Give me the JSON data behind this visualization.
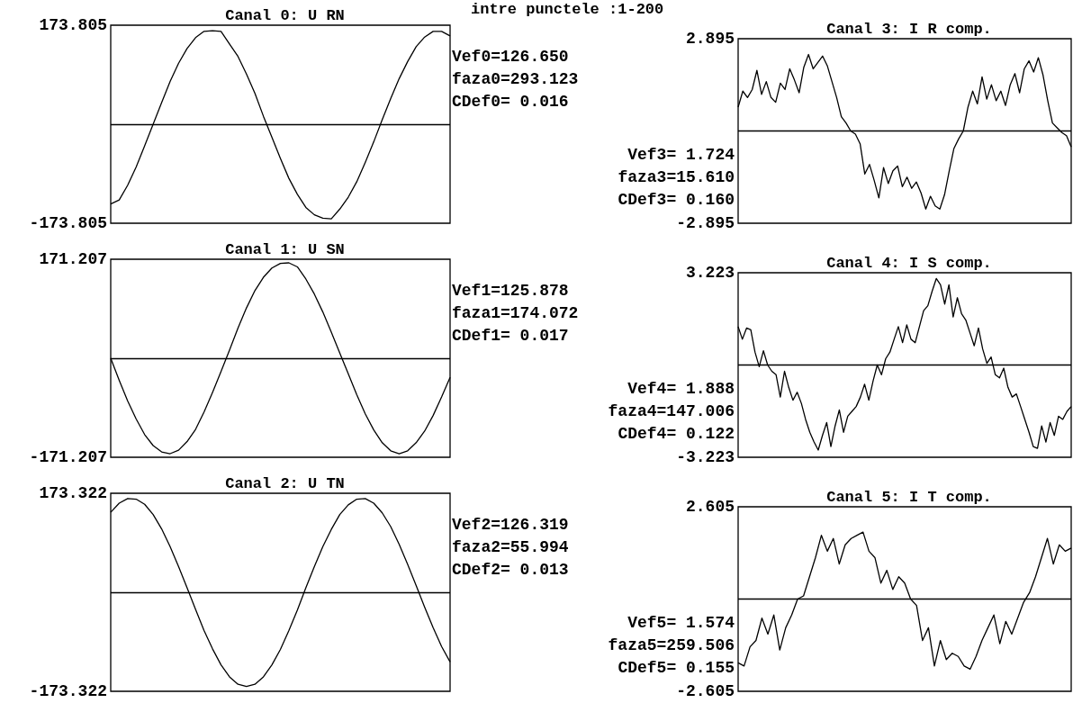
{
  "chart_data": [
    {
      "type": "line",
      "title": "Canal 0: U RN",
      "annotations": [
        "Vef0=126.650",
        "faza0=293.123",
        "CDef0= 0.016"
      ],
      "categories": [
        null,
        null,
        null,
        null,
        null,
        null,
        null,
        null,
        null,
        null,
        null,
        null,
        null,
        null,
        null,
        null,
        null,
        null,
        null,
        null,
        null,
        null,
        null,
        null,
        null,
        null,
        null,
        null,
        null,
        null,
        null,
        null,
        null,
        null,
        null,
        null,
        null,
        null,
        null,
        null,
        null
      ],
      "series": [
        {
          "color": "#000000",
          "values": [
            -140,
            -133,
            -107,
            -75,
            -38,
            0,
            38,
            75,
            107,
            133,
            152,
            163,
            164,
            163,
            141,
            119,
            88,
            54,
            14,
            -23,
            -60,
            -95,
            -123,
            -146,
            -159,
            -165,
            -166,
            -149,
            -128,
            -101,
            -67,
            -31,
            8,
            45,
            80,
            110,
            136,
            153,
            163,
            163,
            155
          ]
        }
      ],
      "ylim": [
        -173.805,
        173.805
      ],
      "yticks": [
        -173.805,
        173.805
      ],
      "ref_lines": [
        {
          "axis": "y",
          "value": 0
        }
      ],
      "tick_labels": "y"
    },
    {
      "type": "line",
      "title": "Canal 3: I R comp.",
      "subtitle": "intre punctele :1-200",
      "annotations": [
        "Vef3= 1.724",
        "faza3=15.610",
        "CDef3= 0.160"
      ],
      "categories": [
        null,
        null,
        null,
        null,
        null,
        null,
        null,
        null,
        null,
        null,
        null,
        null,
        null,
        null,
        null,
        null,
        null,
        null,
        null,
        null,
        null,
        null,
        null,
        null,
        null,
        null,
        null,
        null,
        null,
        null,
        null,
        null,
        null,
        null,
        null,
        null,
        null,
        null,
        null,
        null,
        null,
        null,
        null,
        null,
        null,
        null,
        null,
        null,
        null,
        null,
        null,
        null,
        null,
        null,
        null,
        null,
        null,
        null,
        null,
        null,
        null,
        null,
        null,
        null,
        null,
        null,
        null,
        null,
        null,
        null,
        null,
        null
      ],
      "series": [
        {
          "color": "#000000",
          "values": [
            0.75,
            1.25,
            1.05,
            1.3,
            1.9,
            1.15,
            1.55,
            1.05,
            0.9,
            1.5,
            1.3,
            1.95,
            1.6,
            1.2,
            2.0,
            2.4,
            1.95,
            2.15,
            2.35,
            2.05,
            1.55,
            1.05,
            0.45,
            0.25,
            0,
            -0.1,
            -0.4,
            -1.35,
            -1.05,
            -1.55,
            -2.1,
            -1.15,
            -1.65,
            -1.25,
            -1.1,
            -1.75,
            -1.45,
            -1.8,
            -1.6,
            -1.95,
            -2.45,
            -2.05,
            -2.35,
            -2.45,
            -2.0,
            -1.25,
            -0.55,
            -0.25,
            0,
            0.75,
            1.25,
            0.85,
            1.7,
            1.0,
            1.45,
            0.95,
            1.25,
            0.8,
            1.45,
            1.8,
            1.2,
            1.95,
            2.2,
            1.85,
            2.3,
            1.75,
            0.95,
            0.25,
            0.1,
            -0.05,
            -0.15,
            -0.5
          ]
        }
      ],
      "ylim": [
        -2.895,
        2.895
      ],
      "yticks": [
        -2.895,
        2.895
      ],
      "ref_lines": [
        {
          "axis": "y",
          "value": 0
        }
      ],
      "tick_labels": "y"
    },
    {
      "type": "line",
      "title": "Canal 1: U SN",
      "annotations": [
        "Vef1=125.878",
        "faza1=174.072",
        "CDef1= 0.017"
      ],
      "categories": [
        null,
        null,
        null,
        null,
        null,
        null,
        null,
        null,
        null,
        null,
        null,
        null,
        null,
        null,
        null,
        null,
        null,
        null,
        null,
        null,
        null,
        null,
        null,
        null,
        null,
        null,
        null,
        null,
        null,
        null,
        null,
        null,
        null,
        null,
        null,
        null,
        null,
        null,
        null,
        null,
        null
      ],
      "series": [
        {
          "color": "#000000",
          "values": [
            0,
            -38,
            -74,
            -105,
            -132,
            -151,
            -162,
            -165,
            -159,
            -144,
            -123,
            -93,
            -59,
            -23,
            14,
            52,
            87,
            117,
            140,
            156,
            164,
            165,
            158,
            137,
            111,
            80,
            45,
            9,
            -27,
            -63,
            -96,
            -124,
            -146,
            -160,
            -165,
            -160,
            -146,
            -126,
            -99,
            -67,
            -33
          ]
        }
      ],
      "ylim": [
        -171.207,
        171.207
      ],
      "yticks": [
        -171.207,
        171.207
      ],
      "ref_lines": [
        {
          "axis": "y",
          "value": 0
        }
      ],
      "tick_labels": "y"
    },
    {
      "type": "line",
      "title": "Canal 4: I S comp.",
      "annotations": [
        "Vef4= 1.888",
        "faza4=147.006",
        "CDef4= 0.122"
      ],
      "categories": [
        null,
        null,
        null,
        null,
        null,
        null,
        null,
        null,
        null,
        null,
        null,
        null,
        null,
        null,
        null,
        null,
        null,
        null,
        null,
        null,
        null,
        null,
        null,
        null,
        null,
        null,
        null,
        null,
        null,
        null,
        null,
        null,
        null,
        null,
        null,
        null,
        null,
        null,
        null,
        null,
        null,
        null,
        null,
        null,
        null,
        null,
        null,
        null,
        null,
        null,
        null,
        null,
        null,
        null,
        null,
        null,
        null,
        null,
        null,
        null,
        null,
        null,
        null,
        null,
        null,
        null,
        null,
        null,
        null,
        null,
        null,
        null,
        null,
        null,
        null,
        null,
        null,
        null,
        null,
        null
      ],
      "series": [
        {
          "color": "#000000",
          "values": [
            1.34,
            0.9,
            1.29,
            1.23,
            0.45,
            -0.06,
            0.5,
            0,
            -0.22,
            -0.34,
            -1.12,
            -0.22,
            -0.78,
            -1.23,
            -0.95,
            -1.34,
            -1.9,
            -2.35,
            -2.69,
            -2.97,
            -2.46,
            -2.01,
            -2.85,
            -2.13,
            -1.57,
            -2.35,
            -1.79,
            -1.62,
            -1.45,
            -1.12,
            -0.67,
            -1.23,
            -0.56,
            0,
            -0.34,
            0.22,
            0.45,
            0.9,
            1.34,
            0.78,
            1.4,
            0.9,
            0.78,
            1.34,
            1.9,
            2.07,
            2.57,
            3.02,
            2.8,
            2.13,
            2.8,
            1.68,
            2.35,
            1.79,
            1.57,
            1.12,
            0.67,
            1.29,
            0.56,
            0.06,
            0.28,
            -0.34,
            -0.45,
            -0.11,
            -0.78,
            -1.12,
            -1.01,
            -1.45,
            -1.9,
            -2.35,
            -2.85,
            -2.91,
            -2.13,
            -2.69,
            -2.01,
            -2.46,
            -1.79,
            -1.9,
            -1.62,
            -1.45
          ]
        }
      ],
      "ylim": [
        -3.223,
        3.223
      ],
      "yticks": [
        -3.223,
        3.223
      ],
      "ref_lines": [
        {
          "axis": "y",
          "value": 0
        }
      ],
      "tick_labels": "y"
    },
    {
      "type": "line",
      "title": "Canal 2: U TN",
      "annotations": [
        "Vef2=126.319",
        "faza2=55.994",
        "CDef2= 0.013"
      ],
      "categories": [
        null,
        null,
        null,
        null,
        null,
        null,
        null,
        null,
        null,
        null,
        null,
        null,
        null,
        null,
        null,
        null,
        null,
        null,
        null,
        null,
        null,
        null,
        null,
        null,
        null,
        null,
        null,
        null,
        null,
        null,
        null,
        null,
        null,
        null,
        null,
        null,
        null,
        null,
        null,
        null,
        null
      ],
      "series": [
        {
          "color": "#000000",
          "values": [
            140,
            156,
            164,
            163,
            154,
            136,
            111,
            80,
            45,
            8,
            -30,
            -67,
            -99,
            -127,
            -148,
            -161,
            -165,
            -161,
            -148,
            -127,
            -100,
            -67,
            -31,
            8,
            45,
            80,
            110,
            136,
            153,
            163,
            164,
            156,
            139,
            115,
            84,
            49,
            12,
            -26,
            -62,
            -95,
            -122
          ]
        }
      ],
      "ylim": [
        -173.322,
        173.322
      ],
      "yticks": [
        -173.322,
        173.322
      ],
      "ref_lines": [
        {
          "axis": "y",
          "value": 0
        }
      ],
      "tick_labels": "y"
    },
    {
      "type": "line",
      "title": "Canal 5: I T comp.",
      "annotations": [
        "Vef5= 1.574",
        "faza5=259.506",
        "CDef5= 0.155"
      ],
      "categories": [
        null,
        null,
        null,
        null,
        null,
        null,
        null,
        null,
        null,
        null,
        null,
        null,
        null,
        null,
        null,
        null,
        null,
        null,
        null,
        null,
        null,
        null,
        null,
        null,
        null,
        null,
        null,
        null,
        null,
        null,
        null,
        null,
        null,
        null,
        null,
        null,
        null,
        null,
        null,
        null,
        null,
        null,
        null,
        null,
        null,
        null,
        null,
        null,
        null,
        null,
        null,
        null,
        null,
        null,
        null,
        null,
        null
      ],
      "series": [
        {
          "color": "#000000",
          "values": [
            -1.8,
            -1.89,
            -1.35,
            -1.17,
            -0.54,
            -0.99,
            -0.45,
            -1.44,
            -0.81,
            -0.45,
            0,
            0.09,
            0.63,
            1.17,
            1.8,
            1.35,
            1.71,
            0.99,
            1.53,
            1.71,
            1.8,
            1.89,
            1.35,
            1.17,
            0.45,
            0.81,
            0.27,
            0.63,
            0.45,
            0,
            -0.18,
            -1.17,
            -0.81,
            -1.89,
            -1.17,
            -1.71,
            -1.53,
            -1.62,
            -1.89,
            -1.98,
            -1.62,
            -1.17,
            -0.81,
            -0.45,
            -1.26,
            -0.63,
            -0.99,
            -0.54,
            -0.09,
            0.18,
            0.63,
            1.17,
            1.71,
            0.99,
            1.53,
            1.35,
            1.44
          ]
        }
      ],
      "ylim": [
        -2.605,
        2.605
      ],
      "yticks": [
        -2.605,
        2.605
      ],
      "ref_lines": [
        {
          "axis": "y",
          "value": 0
        }
      ],
      "tick_labels": "y"
    }
  ]
}
